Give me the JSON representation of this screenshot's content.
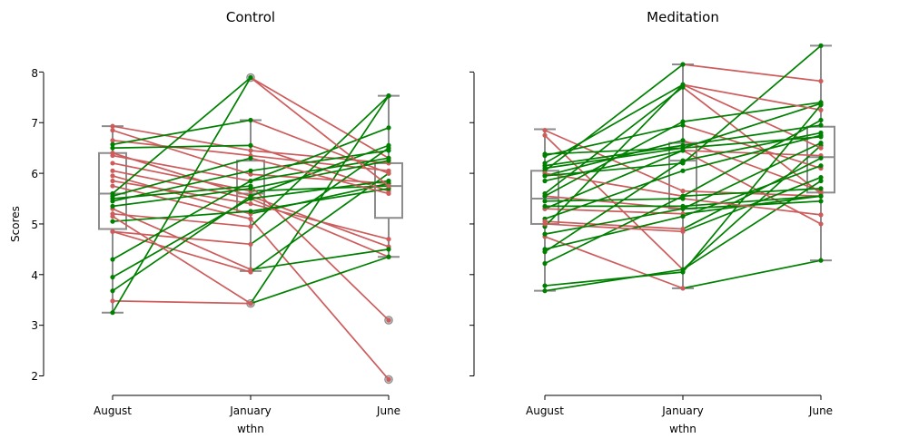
{
  "chart_data": {
    "type": "line",
    "ylabel": "Scores",
    "ylim": [
      1.9,
      8.6
    ],
    "yticks": [
      2,
      3,
      4,
      5,
      6,
      7,
      8
    ],
    "categories": [
      "August",
      "January",
      "June"
    ],
    "colors": {
      "increase": "#008000",
      "decrease": "#cd5c5c",
      "box": "#8c8c8c"
    },
    "panels": [
      {
        "title": "Control",
        "xlabel": "wthn",
        "box": [
          {
            "min": 3.25,
            "q1": 4.9,
            "median": 5.6,
            "q3": 6.4,
            "max": 6.93,
            "outliers": []
          },
          {
            "min": 4.07,
            "q1": 5.25,
            "median": 5.6,
            "q3": 6.25,
            "max": 7.05,
            "outliers": [
              3.43,
              7.89
            ]
          },
          {
            "min": 4.35,
            "q1": 5.12,
            "median": 5.75,
            "q3": 6.2,
            "max": 7.53,
            "outliers": [
              3.1,
              1.93
            ]
          }
        ],
        "subjects": [
          [
            6.93,
            6.45,
            6.2
          ],
          [
            6.85,
            5.98,
            5.8
          ],
          [
            6.65,
            6.35,
            6.05
          ],
          [
            6.4,
            5.55,
            4.55
          ],
          [
            6.35,
            5.85,
            6.9
          ],
          [
            6.2,
            5.65,
            5.75
          ],
          [
            6.05,
            5.5,
            4.35
          ],
          [
            5.95,
            5.2,
            5.8
          ],
          [
            5.85,
            5.4,
            4.7
          ],
          [
            5.75,
            5.1,
            1.93
          ],
          [
            5.6,
            7.89,
            6.3
          ],
          [
            5.5,
            5.75,
            3.1
          ],
          [
            5.3,
            4.1,
            4.5
          ],
          [
            4.85,
            4.05,
            6.0
          ],
          [
            3.48,
            3.43,
            4.35
          ],
          [
            6.57,
            7.05,
            6.0
          ],
          [
            6.5,
            6.55,
            5.65
          ],
          [
            5.45,
            6.05,
            6.45
          ],
          [
            5.35,
            5.7,
            6.25
          ],
          [
            5.2,
            4.95,
            7.53
          ],
          [
            5.05,
            5.25,
            5.7
          ],
          [
            4.85,
            4.6,
            6.5
          ],
          [
            4.3,
            5.85,
            6.3
          ],
          [
            3.95,
            5.5,
            5.85
          ],
          [
            3.68,
            5.55,
            6.55
          ],
          [
            3.25,
            7.89,
            5.75
          ],
          [
            5.15,
            3.43,
            7.53
          ],
          [
            5.55,
            6.3,
            5.6
          ]
        ]
      },
      {
        "title": "Meditation",
        "xlabel": "wthn",
        "box": [
          {
            "min": 3.68,
            "q1": 5.0,
            "median": 5.5,
            "q3": 6.05,
            "max": 6.87,
            "outliers": []
          },
          {
            "min": 3.73,
            "q1": 5.3,
            "median": 6.25,
            "q3": 6.6,
            "max": 8.15,
            "outliers": []
          },
          {
            "min": 4.28,
            "q1": 5.62,
            "median": 6.32,
            "q3": 6.92,
            "max": 8.52,
            "outliers": []
          }
        ],
        "subjects": [
          [
            6.85,
            5.65,
            5.55
          ],
          [
            6.75,
            4.1,
            6.55
          ],
          [
            6.2,
            7.75,
            6.5
          ],
          [
            6.05,
            8.15,
            7.82
          ],
          [
            5.95,
            6.65,
            5.65
          ],
          [
            5.6,
            7.7,
            5.6
          ],
          [
            5.3,
            6.45,
            5.0
          ],
          [
            4.75,
            3.73,
            4.28
          ],
          [
            5.55,
            5.3,
            5.45
          ],
          [
            6.0,
            5.55,
            5.7
          ],
          [
            6.35,
            6.95,
            6.1
          ],
          [
            5.3,
            5.2,
            5.55
          ],
          [
            6.38,
            6.5,
            7.38
          ],
          [
            6.15,
            6.55,
            6.95
          ],
          [
            5.95,
            6.2,
            8.52
          ],
          [
            5.85,
            6.45,
            6.35
          ],
          [
            5.55,
            7.02,
            7.4
          ],
          [
            5.35,
            5.35,
            5.55
          ],
          [
            5.1,
            6.05,
            6.75
          ],
          [
            5.05,
            4.9,
            6.3
          ],
          [
            4.95,
            7.75,
            7.25
          ],
          [
            4.5,
            5.15,
            6.15
          ],
          [
            4.45,
            6.25,
            6.8
          ],
          [
            4.22,
            5.55,
            7.05
          ],
          [
            3.78,
            4.05,
            7.35
          ],
          [
            3.68,
            4.1,
            5.85
          ],
          [
            5.0,
            4.85,
            5.92
          ],
          [
            5.45,
            5.5,
            5.18
          ],
          [
            4.8,
            5.3,
            6.6
          ],
          [
            6.1,
            6.5,
            6.72
          ]
        ]
      }
    ]
  }
}
